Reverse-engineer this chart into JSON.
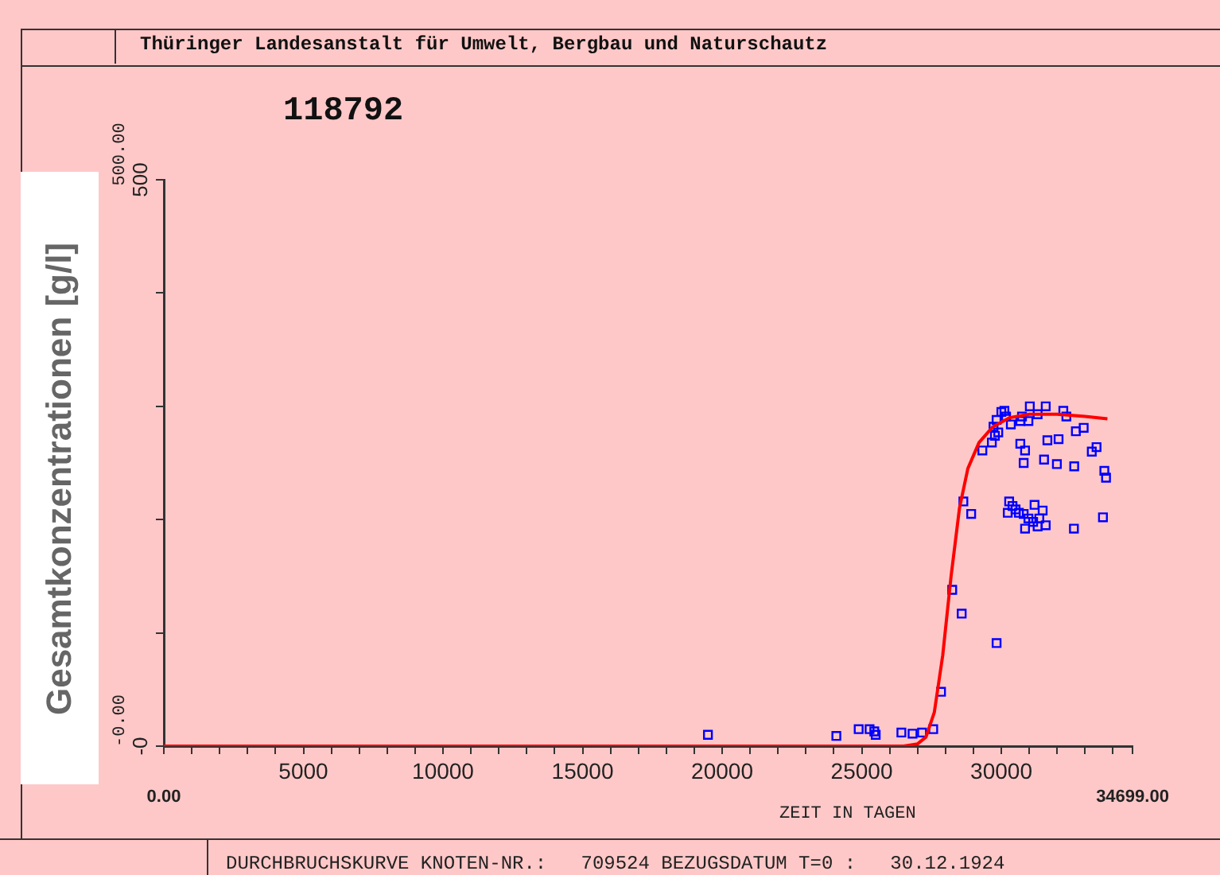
{
  "chart_data": {
    "type": "scatter",
    "title": "118792",
    "xlabel": "ZEIT IN TAGEN",
    "ylabel": "Gesamtkonzentrationen [g/l]",
    "annotations": [
      "Thüringer Landesanstalt für Umwelt, Bergbau und Naturschautz",
      "DURCHBRUCHSKURVE KNOTEN-NR.:   709524 BEZUGSDATUM T=0 :   30.12.1924",
      "500.00",
      "-0.00",
      "0.00",
      "34699.00"
    ],
    "xlim": [
      0,
      34699
    ],
    "ylim": [
      0,
      500
    ],
    "xticks": [
      {
        "value": 0,
        "label": null
      },
      {
        "value": 1000,
        "label": null
      },
      {
        "value": 2000,
        "label": null
      },
      {
        "value": 3000,
        "label": null
      },
      {
        "value": 4000,
        "label": null
      },
      5000,
      {
        "value": 6000,
        "label": null
      },
      {
        "value": 7000,
        "label": null
      },
      {
        "value": 8000,
        "label": null
      },
      {
        "value": 9000,
        "label": null
      },
      10000,
      {
        "value": 11000,
        "label": null
      },
      {
        "value": 12000,
        "label": null
      },
      {
        "value": 13000,
        "label": null
      },
      {
        "value": 14000,
        "label": null
      },
      15000,
      {
        "value": 16000,
        "label": null
      },
      {
        "value": 17000,
        "label": null
      },
      {
        "value": 18000,
        "label": null
      },
      {
        "value": 19000,
        "label": null
      },
      20000,
      {
        "value": 21000,
        "label": null
      },
      {
        "value": 22000,
        "label": null
      },
      {
        "value": 23000,
        "label": null
      },
      {
        "value": 24000,
        "label": null
      },
      25000,
      {
        "value": 26000,
        "label": null
      },
      {
        "value": 27000,
        "label": null
      },
      {
        "value": 28000,
        "label": null
      },
      {
        "value": 29000,
        "label": null
      },
      30000,
      {
        "value": 31000,
        "label": null
      },
      {
        "value": 32000,
        "label": null
      },
      {
        "value": 33000,
        "label": null
      },
      {
        "value": 34000,
        "label": null
      },
      {
        "value": 34699,
        "label": null
      }
    ],
    "yticks": [
      {
        "value": 0,
        "label": "-0"
      },
      {
        "value": 100,
        "label": null
      },
      {
        "value": 200,
        "label": null
      },
      {
        "value": 300,
        "label": null
      },
      {
        "value": 400,
        "label": null
      },
      {
        "value": 500,
        "label": "500"
      }
    ],
    "grid": false,
    "legend": false,
    "series": [
      {
        "type": "line",
        "color": "#ff0000",
        "marker": "none",
        "line_style": "solid",
        "x": [
          0,
          26500,
          27000,
          27300,
          27600,
          27900,
          28200,
          28500,
          28800,
          29200,
          29700,
          30300,
          31000,
          32000,
          33000,
          33800
        ],
        "values": [
          0,
          0,
          2,
          8,
          30,
          80,
          150,
          210,
          245,
          268,
          282,
          290,
          293,
          293,
          291,
          289
        ]
      },
      {
        "color": "#0000ff",
        "marker": "square",
        "x": [
          19490,
          24090,
          24890,
          25280,
          25450,
          25500,
          26420,
          26820,
          27160,
          27560,
          27840,
          28240,
          28580,
          28640,
          28920,
          29830,
          29320,
          29660,
          29720,
          29770,
          29830,
          29890,
          30000,
          30110,
          30170,
          30340,
          30680,
          30970,
          30740,
          31020,
          31300,
          31590,
          32220,
          32330,
          30680,
          31650,
          32050,
          32670,
          32950,
          30850,
          31530,
          31990,
          32610,
          33240,
          33410,
          33690,
          33750,
          30800,
          30230,
          30280,
          30400,
          30510,
          30630,
          30800,
          30970,
          31140,
          31190,
          31300,
          31360,
          31480,
          31590,
          30850,
          32600,
          33640
        ],
        "values": [
          10,
          9,
          15,
          15,
          13,
          10,
          12,
          11,
          12,
          15,
          48,
          138,
          117,
          216,
          205,
          91,
          261,
          268,
          282,
          274,
          288,
          277,
          295,
          296,
          291,
          284,
          287,
          287,
          291,
          300,
          293,
          300,
          296,
          291,
          267,
          270,
          271,
          278,
          281,
          261,
          253,
          249,
          247,
          260,
          264,
          243,
          237,
          250,
          206,
          216,
          212,
          209,
          206,
          205,
          201,
          198,
          213,
          194,
          201,
          208,
          195,
          192,
          192,
          202
        ]
      }
    ]
  }
}
